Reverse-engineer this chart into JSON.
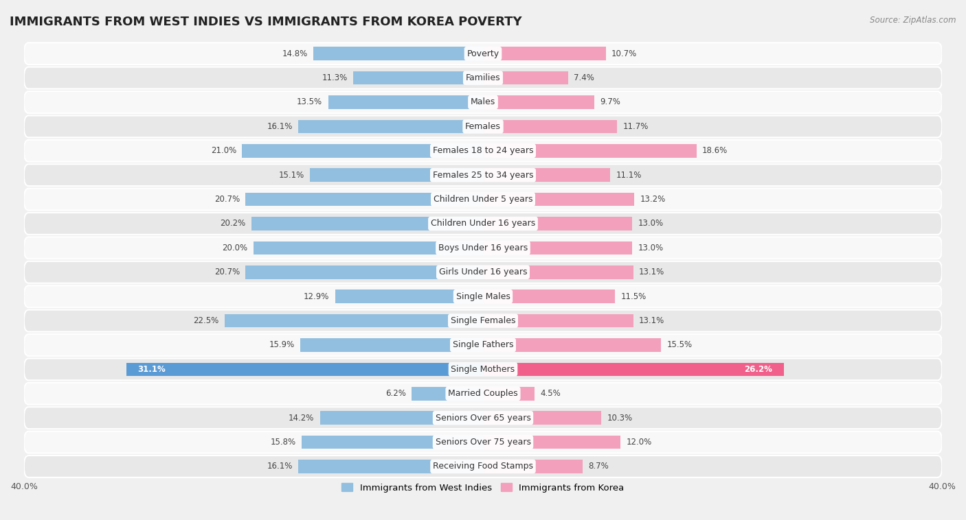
{
  "title": "IMMIGRANTS FROM WEST INDIES VS IMMIGRANTS FROM KOREA POVERTY",
  "source": "Source: ZipAtlas.com",
  "categories": [
    "Poverty",
    "Families",
    "Males",
    "Females",
    "Females 18 to 24 years",
    "Females 25 to 34 years",
    "Children Under 5 years",
    "Children Under 16 years",
    "Boys Under 16 years",
    "Girls Under 16 years",
    "Single Males",
    "Single Females",
    "Single Fathers",
    "Single Mothers",
    "Married Couples",
    "Seniors Over 65 years",
    "Seniors Over 75 years",
    "Receiving Food Stamps"
  ],
  "west_indies": [
    14.8,
    11.3,
    13.5,
    16.1,
    21.0,
    15.1,
    20.7,
    20.2,
    20.0,
    20.7,
    12.9,
    22.5,
    15.9,
    31.1,
    6.2,
    14.2,
    15.8,
    16.1
  ],
  "korea": [
    10.7,
    7.4,
    9.7,
    11.7,
    18.6,
    11.1,
    13.2,
    13.0,
    13.0,
    13.1,
    11.5,
    13.1,
    15.5,
    26.2,
    4.5,
    10.3,
    12.0,
    8.7
  ],
  "color_west_indies": "#92bfdf",
  "color_korea": "#f2a0bc",
  "color_single_mothers_wi": "#5b9bd5",
  "color_single_mothers_kr": "#f0608a",
  "axis_limit": 40.0,
  "label_west_indies": "Immigrants from West Indies",
  "label_korea": "Immigrants from Korea",
  "background_color": "#f0f0f0",
  "row_bg_light": "#f8f8f8",
  "row_bg_dark": "#e8e8e8",
  "bar_height": 0.55,
  "value_fontsize": 8.5,
  "category_fontsize": 9,
  "title_fontsize": 13
}
